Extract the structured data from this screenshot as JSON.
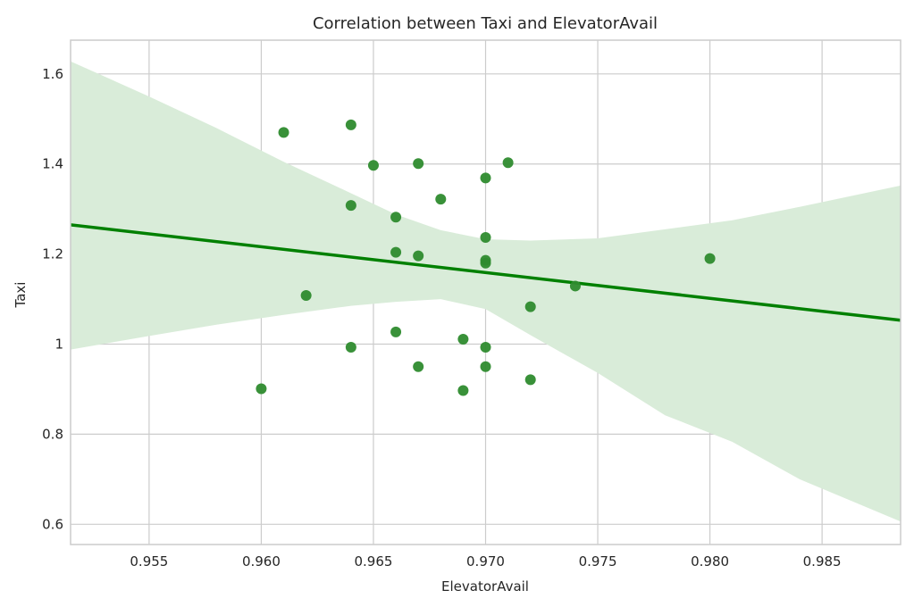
{
  "chart_data": {
    "type": "scatter",
    "title": "Correlation between Taxi and ElevatorAvail",
    "xlabel": "ElevatorAvail",
    "ylabel": "Taxi",
    "xlim": [
      0.9515,
      0.9885
    ],
    "ylim": [
      0.555,
      1.675
    ],
    "grid": true,
    "x_ticks": [
      0.955,
      0.96,
      0.965,
      0.97,
      0.975,
      0.98,
      0.985
    ],
    "x_tick_labels": [
      "0.955",
      "0.960",
      "0.965",
      "0.970",
      "0.975",
      "0.980",
      "0.985"
    ],
    "y_ticks": [
      0.6,
      0.8,
      1.0,
      1.2,
      1.4,
      1.6
    ],
    "y_tick_labels": [
      "0.6",
      "0.8",
      "1",
      "1.2",
      "1.4",
      "1.6"
    ],
    "points": [
      {
        "x": 0.961,
        "y": 1.47
      },
      {
        "x": 0.964,
        "y": 1.487
      },
      {
        "x": 0.965,
        "y": 1.397
      },
      {
        "x": 0.967,
        "y": 1.401
      },
      {
        "x": 0.971,
        "y": 1.403
      },
      {
        "x": 0.97,
        "y": 1.369
      },
      {
        "x": 0.968,
        "y": 1.322
      },
      {
        "x": 0.964,
        "y": 1.308
      },
      {
        "x": 0.966,
        "y": 1.282
      },
      {
        "x": 0.97,
        "y": 1.237
      },
      {
        "x": 0.966,
        "y": 1.204
      },
      {
        "x": 0.967,
        "y": 1.196
      },
      {
        "x": 0.97,
        "y": 1.186
      },
      {
        "x": 0.97,
        "y": 1.18
      },
      {
        "x": 0.98,
        "y": 1.19
      },
      {
        "x": 0.974,
        "y": 1.129
      },
      {
        "x": 0.962,
        "y": 1.108
      },
      {
        "x": 0.972,
        "y": 1.083
      },
      {
        "x": 0.966,
        "y": 1.027
      },
      {
        "x": 0.969,
        "y": 1.011
      },
      {
        "x": 0.964,
        "y": 0.993
      },
      {
        "x": 0.97,
        "y": 0.993
      },
      {
        "x": 0.967,
        "y": 0.95
      },
      {
        "x": 0.97,
        "y": 0.95
      },
      {
        "x": 0.972,
        "y": 0.921
      },
      {
        "x": 0.96,
        "y": 0.901
      },
      {
        "x": 0.969,
        "y": 0.897
      }
    ],
    "regression_line": {
      "x": [
        0.9515,
        0.9885
      ],
      "y": [
        1.265,
        1.053
      ]
    },
    "confidence_band": {
      "x": [
        0.9515,
        0.955,
        0.958,
        0.961,
        0.964,
        0.966,
        0.968,
        0.97,
        0.972,
        0.975,
        0.978,
        0.981,
        0.984,
        0.9885
      ],
      "upper": [
        1.628,
        1.55,
        1.48,
        1.405,
        1.335,
        1.288,
        1.253,
        1.233,
        1.23,
        1.235,
        1.255,
        1.275,
        1.305,
        1.352
      ],
      "lower": [
        0.988,
        1.018,
        1.043,
        1.065,
        1.085,
        1.094,
        1.1,
        1.078,
        1.02,
        0.936,
        0.842,
        0.783,
        0.7,
        0.606
      ]
    },
    "colors": {
      "points": "#2e8b2e",
      "line": "#008000",
      "band": "#d9ecd9",
      "grid": "#cccccc",
      "frame": "#cccccc"
    }
  }
}
